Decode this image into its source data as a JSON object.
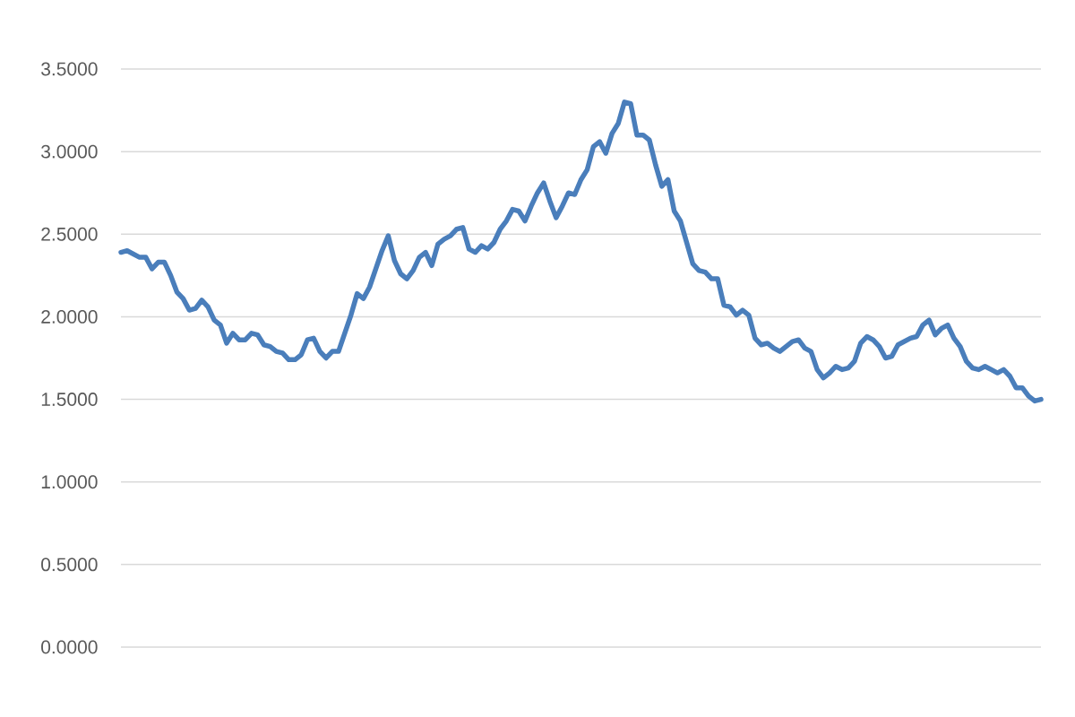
{
  "chart_data": {
    "type": "line",
    "categories": [
      null,
      null,
      null,
      null,
      null,
      null,
      null,
      null,
      null,
      null,
      null,
      null,
      null,
      null,
      null,
      null,
      null,
      null,
      null,
      null,
      null,
      null,
      null,
      null,
      null,
      null,
      null,
      null,
      null,
      null,
      null,
      null,
      null,
      null,
      null,
      null,
      null,
      null,
      null,
      null,
      null,
      null,
      null,
      null,
      null,
      null,
      null,
      null,
      null,
      null,
      null,
      null,
      null,
      null,
      null,
      null,
      null,
      null,
      null,
      null,
      null,
      null,
      null,
      null,
      null,
      null,
      null,
      null,
      null,
      null,
      null,
      null,
      null,
      null,
      null,
      null,
      null,
      null,
      null,
      null,
      null,
      null,
      null,
      null,
      null,
      null,
      null,
      null,
      null,
      null,
      null,
      null,
      null,
      null,
      null,
      null,
      null,
      null,
      null,
      null,
      null,
      null,
      null,
      null,
      null,
      null,
      null,
      null,
      null,
      null,
      null,
      null,
      null,
      null,
      null,
      null,
      null,
      null,
      null,
      null,
      null,
      null,
      null,
      null,
      null,
      null,
      null,
      null,
      null,
      null,
      null,
      null,
      null,
      null,
      null,
      null,
      null,
      null,
      null,
      null,
      null,
      null,
      null,
      null,
      null,
      null,
      null,
      null,
      null
    ],
    "series": [
      {
        "color": "#4a7ebb",
        "values": [
          2.39,
          2.4,
          2.38,
          2.36,
          2.36,
          2.29,
          2.33,
          2.33,
          2.25,
          2.15,
          2.11,
          2.04,
          2.05,
          2.1,
          2.06,
          1.98,
          1.95,
          1.84,
          1.9,
          1.86,
          1.86,
          1.9,
          1.89,
          1.83,
          1.82,
          1.79,
          1.78,
          1.74,
          1.74,
          1.77,
          1.86,
          1.87,
          1.79,
          1.75,
          1.79,
          1.79,
          1.9,
          2.01,
          2.14,
          2.11,
          2.18,
          2.29,
          2.4,
          2.49,
          2.34,
          2.26,
          2.23,
          2.28,
          2.36,
          2.39,
          2.31,
          2.44,
          2.47,
          2.49,
          2.53,
          2.54,
          2.41,
          2.39,
          2.43,
          2.41,
          2.45,
          2.53,
          2.58,
          2.65,
          2.64,
          2.58,
          2.67,
          2.75,
          2.81,
          2.7,
          2.6,
          2.67,
          2.75,
          2.74,
          2.83,
          2.89,
          3.03,
          3.06,
          2.99,
          3.11,
          3.17,
          3.3,
          3.29,
          3.1,
          3.1,
          3.07,
          2.92,
          2.79,
          2.83,
          2.64,
          2.58,
          2.45,
          2.32,
          2.28,
          2.27,
          2.23,
          2.23,
          2.07,
          2.06,
          2.01,
          2.04,
          2.01,
          1.87,
          1.83,
          1.84,
          1.81,
          1.79,
          1.82,
          1.85,
          1.86,
          1.81,
          1.79,
          1.68,
          1.63,
          1.66,
          1.7,
          1.68,
          1.69,
          1.73,
          1.84,
          1.88,
          1.86,
          1.82,
          1.75,
          1.76,
          1.83,
          1.85,
          1.87,
          1.88,
          1.95,
          1.98,
          1.89,
          1.93,
          1.95,
          1.87,
          1.82,
          1.73,
          1.69,
          1.68,
          1.7,
          1.68,
          1.66,
          1.68,
          1.64,
          1.57,
          1.57,
          1.52,
          1.49,
          1.5
        ]
      }
    ],
    "ylim": [
      0,
      3.5
    ],
    "yticks": [
      {
        "value": 0,
        "label": "0.0000"
      },
      {
        "value": 0.5,
        "label": "0.5000"
      },
      {
        "value": 1,
        "label": "1.0000"
      },
      {
        "value": 1.5,
        "label": "1.5000"
      },
      {
        "value": 2,
        "label": "2.0000"
      },
      {
        "value": 2.5,
        "label": "2.5000"
      },
      {
        "value": 3,
        "label": "3.0000"
      },
      {
        "value": 3.5,
        "label": "3.5000"
      }
    ],
    "grid": "y",
    "marker": "none",
    "line_style": "solid"
  }
}
